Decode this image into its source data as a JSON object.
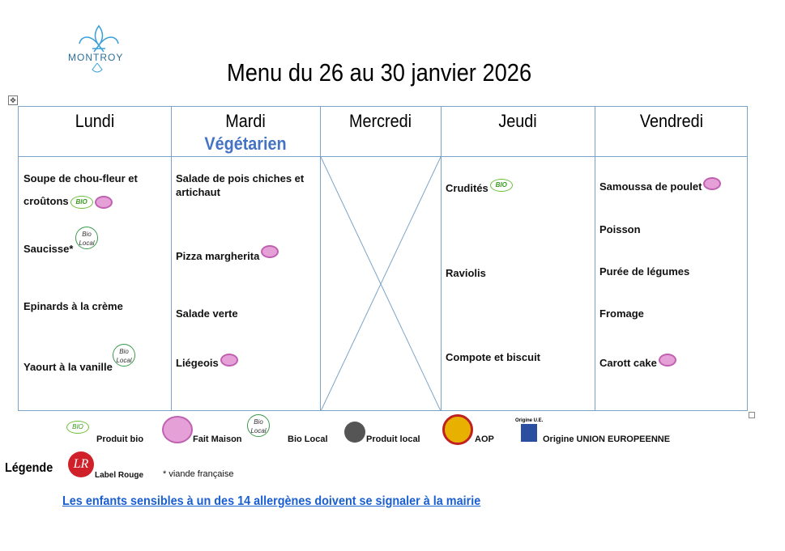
{
  "logo": {
    "text": "MONTROY"
  },
  "title": "Menu du 26 au 30 janvier 2026",
  "table_move_handle": "✥",
  "days": [
    {
      "name": "Lundi",
      "items": [
        {
          "label": "Soupe de chou-fleur et",
          "label2": "croûtons",
          "icons": [
            "bio",
            "fait-maison"
          ]
        },
        {
          "label": "Saucisse*",
          "icons": [
            "bio-local"
          ]
        },
        {
          "label": "Epinards à la crème"
        },
        {
          "label": "Yaourt à la vanille",
          "icons": [
            "bio-local"
          ]
        }
      ]
    },
    {
      "name": "Mardi",
      "subtitle": "Végétarien",
      "items": [
        {
          "label": "Salade de pois chiches et",
          "label2": "artichaut"
        },
        {
          "label": "Pizza margherita",
          "icons": [
            "fait-maison"
          ]
        },
        {
          "label": "Salade verte"
        },
        {
          "label": "Liégeois",
          "icons": [
            "fait-maison"
          ]
        }
      ]
    },
    {
      "name": "Mercredi",
      "items": []
    },
    {
      "name": "Jeudi",
      "items": [
        {
          "label": "Crudités",
          "icons": [
            "bio"
          ]
        },
        {
          "label": "Raviolis"
        },
        {
          "label": "Compote et biscuit"
        }
      ]
    },
    {
      "name": "Vendredi",
      "items": [
        {
          "label": "Samoussa de poulet",
          "icons": [
            "fait-maison"
          ]
        },
        {
          "label": "Poisson"
        },
        {
          "label": "Purée de légumes"
        },
        {
          "label": "Fromage"
        },
        {
          "label": "Carott cake",
          "icons": [
            "fait-maison"
          ]
        }
      ]
    }
  ],
  "icon_text": {
    "bio": "BIO",
    "bio_local": "Bio Local",
    "label_rouge": "LR",
    "eu": "Origine U.E."
  },
  "legend": {
    "title": "Légende",
    "produit_bio": "Produit bio",
    "fait_maison": "Fait Maison",
    "bio_local": "Bio Local",
    "produit_local": "Produit local",
    "aop": "AOP",
    "origine_ue": "Origine UNION EUROPEENNE",
    "label_rouge": "Label Rouge",
    "viande": "* viande française"
  },
  "allergen_notice": "Les enfants sensibles à un des 14 allergènes doivent se signaler à la mairie",
  "colors": {
    "accent": "#4472c4",
    "border": "#7aa3c8",
    "link": "#1a5fd0"
  }
}
